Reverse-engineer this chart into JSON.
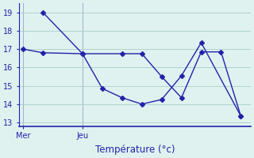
{
  "line1_x": [
    0,
    1,
    3,
    5,
    6,
    7,
    8,
    9,
    10,
    11
  ],
  "line1_y": [
    17.0,
    16.8,
    16.75,
    16.75,
    16.75,
    15.5,
    14.35,
    16.85,
    16.85,
    13.35
  ],
  "line2_x": [
    1,
    3,
    4,
    5,
    6,
    7,
    8,
    9,
    11
  ],
  "line2_y": [
    19.0,
    16.75,
    14.85,
    14.35,
    14.0,
    14.25,
    15.55,
    17.35,
    13.35
  ],
  "line_color": "#2222aa",
  "bg_color": "#dff2f0",
  "grid_color": "#aacccc",
  "axis_color": "#2222aa",
  "xlabel": "Température (°c)",
  "ylim": [
    12.8,
    19.5
  ],
  "yticks": [
    13,
    14,
    15,
    16,
    17,
    18,
    19
  ],
  "xlim": [
    -0.2,
    11.5
  ],
  "mer_x": 0,
  "jeu_x": 3,
  "marker_size": 3,
  "line_width": 1.0
}
